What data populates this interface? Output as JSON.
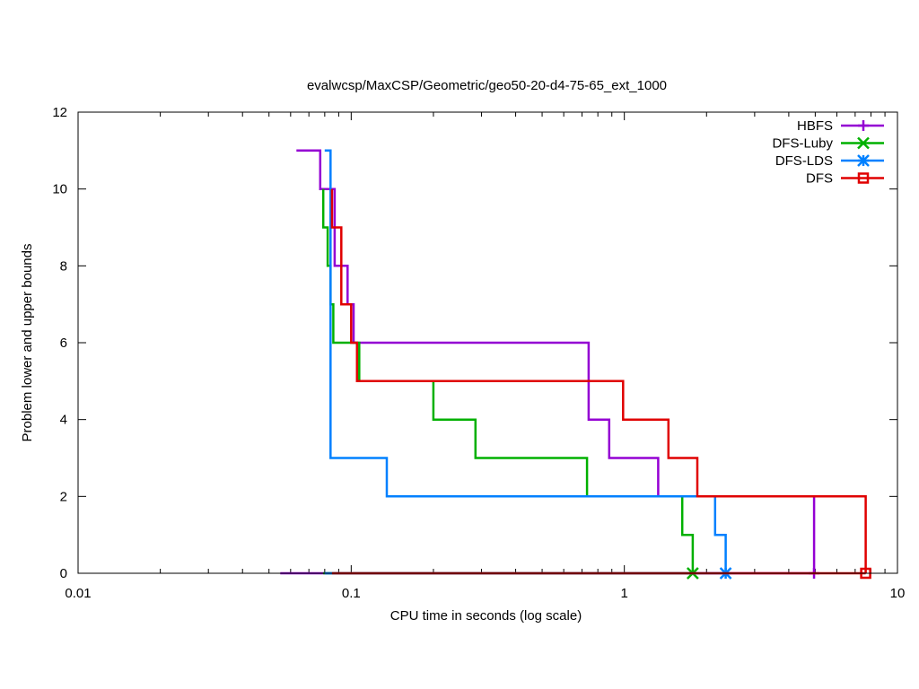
{
  "chart_data": {
    "type": "line",
    "title": "evalwcsp/MaxCSP/Geometric/geo50-20-d4-75-65_ext_1000",
    "xlabel": "CPU time in seconds (log scale)",
    "ylabel": "Problem lower and upper bounds",
    "xscale": "log",
    "xlim": [
      0.01,
      10
    ],
    "ylim": [
      0,
      12
    ],
    "xticks": [
      {
        "value": 0.01,
        "label": "0.01"
      },
      {
        "value": 0.1,
        "label": "0.1"
      },
      {
        "value": 1,
        "label": "1"
      },
      {
        "value": 10,
        "label": "10"
      }
    ],
    "yticks": [
      {
        "value": 0,
        "label": "0"
      },
      {
        "value": 2,
        "label": "2"
      },
      {
        "value": 4,
        "label": "4"
      },
      {
        "value": 6,
        "label": "6"
      },
      {
        "value": 8,
        "label": "8"
      },
      {
        "value": 10,
        "label": "10"
      },
      {
        "value": 12,
        "label": "12"
      }
    ],
    "legend_position": "top-right",
    "series": [
      {
        "name": "HBFS",
        "color": "#9400d3",
        "marker": "plus",
        "upper": [
          [
            0.063,
            11
          ],
          [
            0.077,
            11
          ],
          [
            0.077,
            10
          ],
          [
            0.087,
            10
          ],
          [
            0.087,
            8
          ],
          [
            0.097,
            8
          ],
          [
            0.097,
            7
          ],
          [
            0.102,
            7
          ],
          [
            0.102,
            6
          ],
          [
            0.74,
            6
          ],
          [
            0.74,
            4
          ],
          [
            0.88,
            4
          ],
          [
            0.88,
            3
          ],
          [
            1.33,
            3
          ],
          [
            1.33,
            2
          ],
          [
            4.95,
            2
          ],
          [
            4.95,
            0
          ]
        ],
        "lower": [
          [
            0.055,
            0
          ],
          [
            4.95,
            0
          ]
        ],
        "end_marker": [
          4.95,
          0
        ]
      },
      {
        "name": "DFS-Luby",
        "color": "#00b000",
        "marker": "x",
        "upper": [
          [
            0.079,
            10
          ],
          [
            0.079,
            9
          ],
          [
            0.082,
            9
          ],
          [
            0.082,
            8
          ],
          [
            0.084,
            8
          ],
          [
            0.084,
            7
          ],
          [
            0.086,
            7
          ],
          [
            0.086,
            6
          ],
          [
            0.107,
            6
          ],
          [
            0.107,
            5
          ],
          [
            0.2,
            5
          ],
          [
            0.2,
            4
          ],
          [
            0.285,
            4
          ],
          [
            0.285,
            3
          ],
          [
            0.73,
            3
          ],
          [
            0.73,
            2
          ],
          [
            1.63,
            2
          ],
          [
            1.63,
            1
          ],
          [
            1.78,
            1
          ],
          [
            1.78,
            0
          ]
        ],
        "lower": [
          [
            0.079,
            0
          ],
          [
            1.78,
            0
          ]
        ],
        "end_marker": [
          1.78,
          0
        ]
      },
      {
        "name": "DFS-LDS",
        "color": "#0080ff",
        "marker": "star",
        "upper": [
          [
            0.08,
            11
          ],
          [
            0.084,
            11
          ],
          [
            0.084,
            3
          ],
          [
            0.135,
            3
          ],
          [
            0.135,
            2
          ],
          [
            2.15,
            2
          ],
          [
            2.15,
            1
          ],
          [
            2.35,
            1
          ],
          [
            2.35,
            0
          ]
        ],
        "lower": [
          [
            0.08,
            0
          ],
          [
            2.35,
            0
          ]
        ],
        "end_marker": [
          2.35,
          0
        ]
      },
      {
        "name": "DFS",
        "color": "#e00000",
        "marker": "square",
        "upper": [
          [
            0.085,
            10
          ],
          [
            0.085,
            9
          ],
          [
            0.085,
            9
          ],
          [
            0.092,
            9
          ],
          [
            0.092,
            7
          ],
          [
            0.1,
            7
          ],
          [
            0.1,
            6
          ],
          [
            0.105,
            6
          ],
          [
            0.105,
            5
          ],
          [
            0.99,
            5
          ],
          [
            0.99,
            4
          ],
          [
            1.45,
            4
          ],
          [
            1.45,
            3
          ],
          [
            1.85,
            3
          ],
          [
            1.85,
            2
          ],
          [
            7.65,
            2
          ],
          [
            7.65,
            0
          ]
        ],
        "lower": [
          [
            0.085,
            0
          ],
          [
            7.65,
            0
          ]
        ],
        "end_marker": [
          7.65,
          0
        ]
      }
    ]
  }
}
